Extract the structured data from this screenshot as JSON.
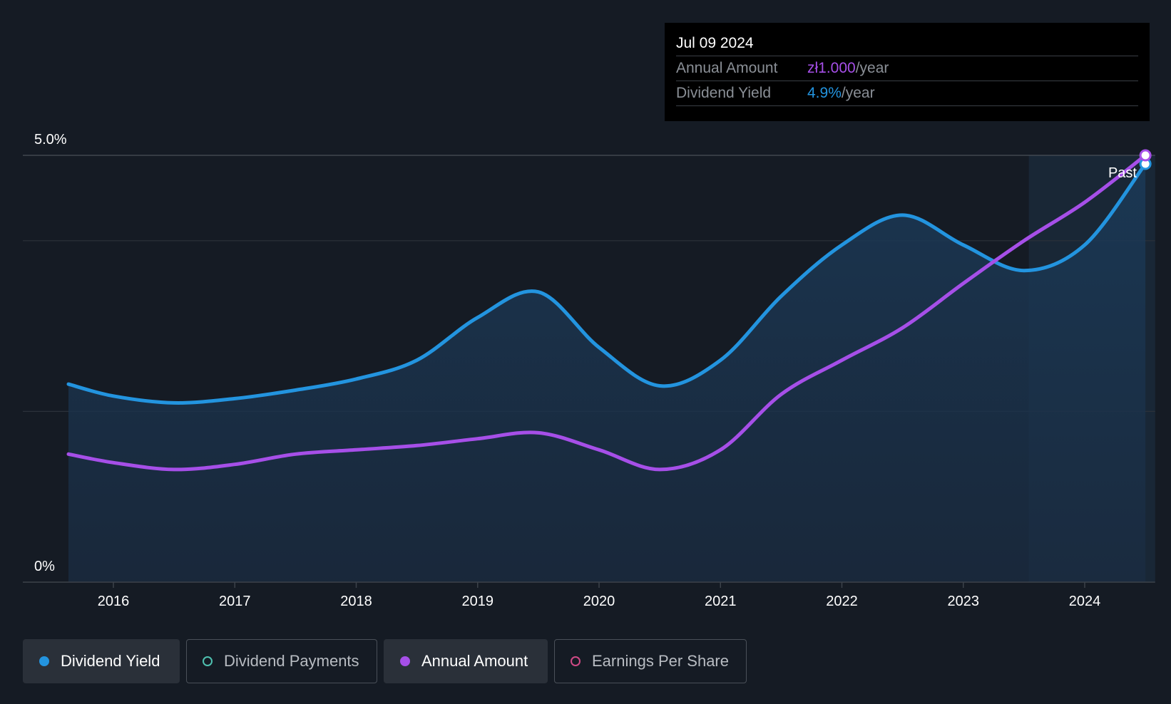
{
  "tooltip": {
    "date": "Jul 09 2024",
    "rows": [
      {
        "label": "Annual Amount",
        "value": "zł1.000",
        "unit": "/year"
      },
      {
        "label": "Dividend Yield",
        "value": "4.9%",
        "unit": "/year"
      }
    ]
  },
  "legend": [
    {
      "label": "Dividend Yield",
      "color": "#2394df",
      "filled": true,
      "active": true
    },
    {
      "label": "Dividend Payments",
      "color": "#4fc1b0",
      "filled": false,
      "active": false
    },
    {
      "label": "Annual Amount",
      "color": "#a64fe8",
      "filled": true,
      "active": true
    },
    {
      "label": "Earnings Per Share",
      "color": "#d04a86",
      "filled": false,
      "active": false
    }
  ],
  "chart_data": {
    "type": "line",
    "y_tick_labels": [
      "5.0%",
      "0%"
    ],
    "ylim": [
      0,
      5.0
    ],
    "x_tick_labels": [
      "2016",
      "2017",
      "2018",
      "2019",
      "2020",
      "2021",
      "2022",
      "2023",
      "2024"
    ],
    "xlim": [
      2015.3,
      2024.58
    ],
    "past_label": "Past",
    "past_start": 2023.54,
    "gridlines_y": [
      5.0,
      4.0,
      2.0
    ],
    "series": [
      {
        "name": "Dividend Yield",
        "color": "#2394df",
        "filled": true,
        "x": [
          2015.63,
          2016.0,
          2016.5,
          2017.0,
          2017.5,
          2018.0,
          2018.5,
          2019.0,
          2019.5,
          2020.0,
          2020.5,
          2021.0,
          2021.5,
          2022.0,
          2022.5,
          2023.0,
          2023.5,
          2024.0,
          2024.5
        ],
        "y": [
          2.32,
          2.18,
          2.1,
          2.15,
          2.25,
          2.38,
          2.6,
          3.1,
          3.4,
          2.75,
          2.3,
          2.6,
          3.35,
          3.95,
          4.3,
          3.95,
          3.65,
          3.95,
          4.9
        ]
      },
      {
        "name": "Annual Amount",
        "color": "#a64fe8",
        "filled": false,
        "x": [
          2015.63,
          2016.0,
          2016.5,
          2017.0,
          2017.5,
          2018.0,
          2018.5,
          2019.0,
          2019.5,
          2020.0,
          2020.5,
          2021.0,
          2021.5,
          2022.0,
          2022.5,
          2023.0,
          2023.5,
          2024.0,
          2024.5
        ],
        "y": [
          1.5,
          1.4,
          1.32,
          1.38,
          1.5,
          1.55,
          1.6,
          1.68,
          1.75,
          1.55,
          1.32,
          1.55,
          2.2,
          2.6,
          2.98,
          3.5,
          4.0,
          4.45,
          5.0
        ]
      }
    ]
  }
}
